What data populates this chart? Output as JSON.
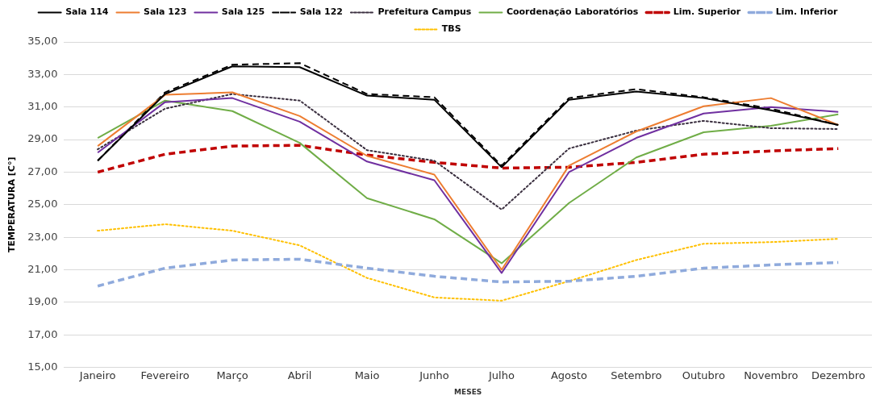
{
  "chart_data": {
    "type": "line",
    "xlabel": "MESES",
    "ylabel": "TEMPERATURA [C°]",
    "categories": [
      "Janeiro",
      "Fevereiro",
      "Março",
      "Abril",
      "Maio",
      "Junho",
      "Julho",
      "Agosto",
      "Setembro",
      "Outubro",
      "Novembro",
      "Dezembro"
    ],
    "series": [
      {
        "name": "Sala 114",
        "color": "#000000",
        "line_style": "solid",
        "values": [
          27.7,
          31.8,
          33.5,
          33.45,
          31.7,
          31.45,
          27.3,
          31.45,
          31.95,
          31.55,
          30.8,
          29.9
        ]
      },
      {
        "name": "Sala 123",
        "color": "#ed7d31",
        "line_style": "solid",
        "values": [
          28.6,
          31.75,
          31.9,
          30.45,
          28.0,
          26.85,
          21.0,
          27.4,
          29.5,
          31.05,
          31.55,
          29.9
        ]
      },
      {
        "name": "Sala 125",
        "color": "#7030a0",
        "line_style": "solid",
        "values": [
          28.2,
          31.3,
          31.55,
          30.1,
          27.65,
          26.5,
          20.8,
          27.0,
          29.1,
          30.6,
          31.0,
          30.7
        ]
      },
      {
        "name": "Sala 122",
        "color": "#000000",
        "line_style": "dashed",
        "values": [
          27.7,
          31.9,
          33.6,
          33.7,
          31.8,
          31.6,
          27.4,
          31.55,
          32.1,
          31.6,
          30.9,
          29.9
        ]
      },
      {
        "name": "Prefeitura Campus",
        "color": "#3a2f3f",
        "line_style": "dotted",
        "values": [
          28.4,
          30.9,
          31.8,
          31.4,
          28.35,
          27.7,
          24.7,
          28.45,
          29.55,
          30.15,
          29.7,
          29.65
        ]
      },
      {
        "name": "Coordenação Laboratórios",
        "color": "#70ad47",
        "line_style": "solid",
        "values": [
          29.1,
          31.4,
          30.75,
          28.8,
          25.4,
          24.1,
          21.4,
          25.1,
          27.9,
          29.45,
          29.85,
          30.55
        ]
      },
      {
        "name": "Lim. Superior",
        "color": "#c00000",
        "line_style": "dashed",
        "values": [
          27.0,
          28.1,
          28.6,
          28.65,
          28.05,
          27.6,
          27.25,
          27.3,
          27.6,
          28.1,
          28.3,
          28.45
        ]
      },
      {
        "name": "Lim. Inferior",
        "color": "#8faadc",
        "line_style": "dashed",
        "values": [
          20.0,
          21.1,
          21.6,
          21.65,
          21.1,
          20.6,
          20.25,
          20.3,
          20.6,
          21.1,
          21.3,
          21.45
        ]
      },
      {
        "name": "TBS",
        "color": "#ffc000",
        "line_style": "dotted",
        "values": [
          23.4,
          23.8,
          23.4,
          22.5,
          20.5,
          19.3,
          19.1,
          20.3,
          21.6,
          22.6,
          22.7,
          22.9
        ]
      }
    ],
    "ylim": [
      15,
      35
    ],
    "yticks": [
      {
        "value": 15,
        "label": "15,00"
      },
      {
        "value": 17,
        "label": "17,00"
      },
      {
        "value": 19,
        "label": "19,00"
      },
      {
        "value": 21,
        "label": "21,00"
      },
      {
        "value": 23,
        "label": "23,00"
      },
      {
        "value": 25,
        "label": "25,00"
      },
      {
        "value": 27,
        "label": "27,00"
      },
      {
        "value": 29,
        "label": "29,00"
      },
      {
        "value": 31,
        "label": "31,00"
      },
      {
        "value": 33,
        "label": "33,00"
      },
      {
        "value": 35,
        "label": "35,00"
      }
    ],
    "grid": "y",
    "legend": "top",
    "marker": "none"
  }
}
